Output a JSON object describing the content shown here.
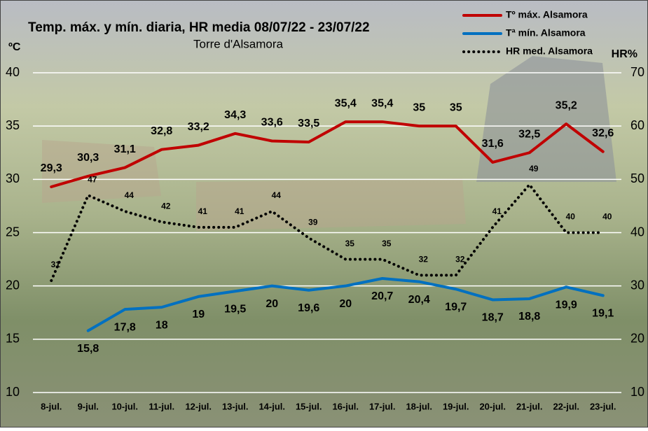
{
  "chart_data": {
    "type": "line",
    "title": "Temp. máx. y mín. diaria, HR media 08/07/22 - 23/07/22",
    "subtitle": "Torre d'Alsamora",
    "ylabel": "ºC",
    "y2label": "HR%",
    "categories": [
      "8-jul.",
      "9-jul.",
      "10-jul.",
      "11-jul.",
      "12-jul.",
      "13-jul.",
      "14-jul.",
      "15-jul.",
      "16-jul.",
      "17-jul.",
      "18-jul.",
      "19-jul.",
      "20-jul.",
      "21-jul.",
      "22-jul.",
      "23-jul."
    ],
    "series": [
      {
        "name": "Tº máx. Alsamora",
        "color": "#c00000",
        "style": "solid",
        "values": [
          29.3,
          30.3,
          31.1,
          32.8,
          33.2,
          34.3,
          33.6,
          33.5,
          35.4,
          35.4,
          35,
          35,
          31.6,
          32.5,
          35.2,
          32.6
        ],
        "value_labels": [
          "29,3",
          "30,3",
          "31,1",
          "32,8",
          "33,2",
          "34,3",
          "33,6",
          "33,5",
          "35,4",
          "35,4",
          "35",
          "35",
          "31,6",
          "32,5",
          "35,2",
          "32,6"
        ]
      },
      {
        "name": "Tª mín. Alsamora",
        "color": "#0070c0",
        "style": "solid",
        "values": [
          null,
          15.8,
          17.8,
          18,
          19,
          19.5,
          20,
          19.6,
          20,
          20.7,
          20.4,
          19.7,
          18.7,
          18.8,
          19.9,
          19.1
        ],
        "value_labels": [
          null,
          "15,8",
          "17,8",
          "18",
          "19",
          "19,5",
          "20",
          "19,6",
          "20",
          "20,7",
          "20,4",
          "19,7",
          "18,7",
          "18,8",
          "19,9",
          "19,1"
        ]
      },
      {
        "name": "HR med. Alsamora",
        "color": "#000000",
        "style": "dotted",
        "axis": "y2",
        "values": [
          31,
          47,
          44,
          42,
          41,
          41,
          44,
          39,
          35,
          35,
          32,
          32,
          41,
          49,
          40,
          40
        ]
      }
    ],
    "ylim": [
      10,
      40
    ],
    "yticks": [
      10,
      15,
      20,
      25,
      30,
      35,
      40
    ],
    "y2lim": [
      10,
      70
    ],
    "y2ticks": [
      10,
      20,
      30,
      40,
      50,
      60,
      70
    ],
    "grid": true,
    "legend": "upper right"
  }
}
